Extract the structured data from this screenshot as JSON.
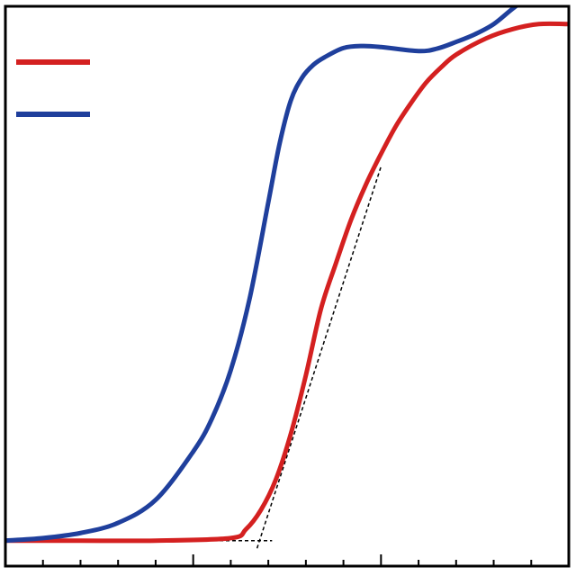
{
  "chart_data": {
    "type": "line",
    "title": "",
    "xlabel": "",
    "ylabel": "",
    "xlim": [
      0,
      15
    ],
    "ylim": [
      -0.5,
      10.5
    ],
    "grid": false,
    "legend": {
      "position": "top-left",
      "show_labels": false
    },
    "colors": {
      "frame": "#000000",
      "guide": "#000000"
    },
    "ticks": {
      "x_minor_step": 1,
      "x_major": [
        5,
        10
      ]
    },
    "series": [
      {
        "name": "red",
        "color": "#d42020",
        "x": [
          0,
          2,
          4,
          6,
          6.4,
          6.8,
          7.2,
          7.6,
          8,
          8.4,
          8.8,
          9.2,
          9.6,
          10,
          10.4,
          10.8,
          11.2,
          11.6,
          12,
          12.8,
          13.5,
          14.2,
          15
        ],
        "y": [
          0,
          0,
          0,
          0.05,
          0.22,
          0.6,
          1.2,
          2.1,
          3.25,
          4.55,
          5.45,
          6.3,
          7.0,
          7.6,
          8.15,
          8.6,
          9.0,
          9.3,
          9.55,
          9.87,
          10.05,
          10.15,
          10.15
        ]
      },
      {
        "name": "blue",
        "color": "#1f3f9c",
        "x": [
          0,
          1,
          2,
          3,
          4,
          5,
          5.5,
          6,
          6.5,
          7,
          7.3,
          7.6,
          7.9,
          8.2,
          8.5,
          9,
          9.5,
          10,
          11,
          11.5,
          12,
          12.5,
          13,
          13.5,
          14.2
        ],
        "y": [
          0,
          0.05,
          0.15,
          0.35,
          0.8,
          1.75,
          2.4,
          3.35,
          4.75,
          6.65,
          7.8,
          8.65,
          9.1,
          9.35,
          9.5,
          9.68,
          9.72,
          9.7,
          9.62,
          9.67,
          9.8,
          9.95,
          10.15,
          10.45,
          10.85
        ]
      }
    ],
    "guides": [
      {
        "name": "baseline-tangent",
        "x": [
          0,
          7.1
        ],
        "y": [
          0,
          0
        ]
      },
      {
        "name": "slope-tangent",
        "x": [
          6.7,
          10
        ],
        "y": [
          -0.15,
          7.35
        ]
      }
    ]
  }
}
